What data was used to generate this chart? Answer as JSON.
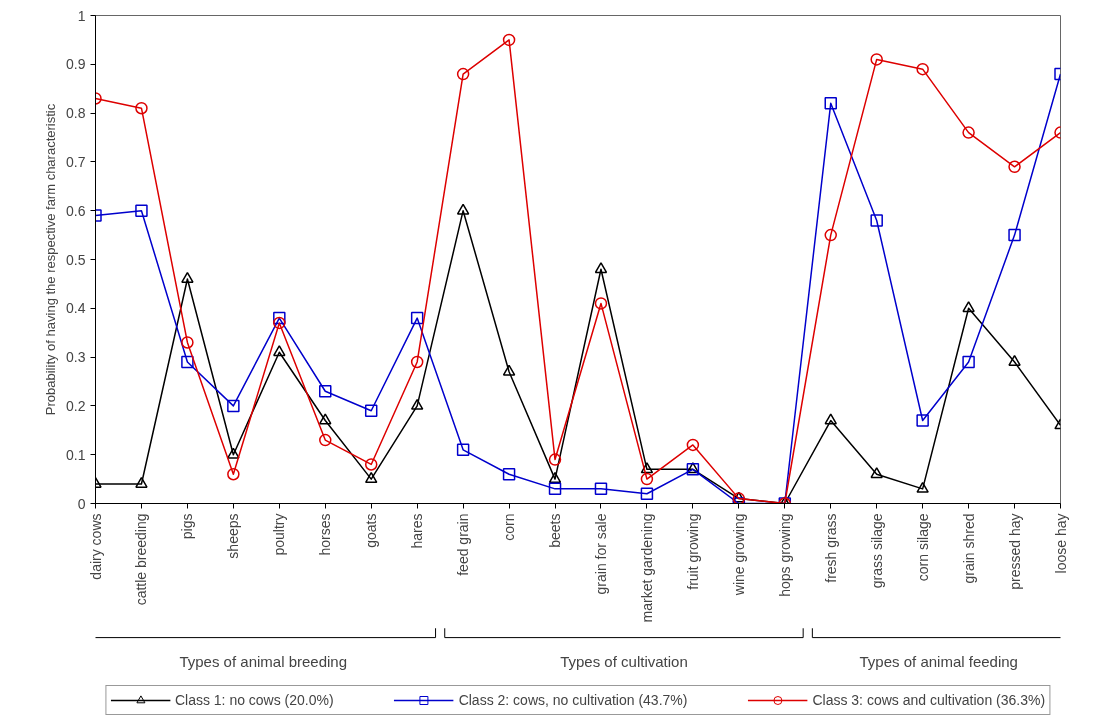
{
  "chart_data": {
    "type": "line",
    "ylabel": "Probability of having the respective farm characteristic",
    "categories": [
      "dairy cows",
      "cattle breeding",
      "pigs",
      "sheeps",
      "poultry",
      "horses",
      "goats",
      "hares",
      "feed grain",
      "corn",
      "beets",
      "grain for sale",
      "market gardening",
      "fruit growing",
      "wine growing",
      "hops growing",
      "fresh grass",
      "grass silage",
      "corn silage",
      "grain shred",
      "pressed hay",
      "loose hay"
    ],
    "series": [
      {
        "name": "Class 1: no cows (20.0%)",
        "color": "#000000",
        "marker": "triangle",
        "values": [
          0.04,
          0.04,
          0.46,
          0.1,
          0.31,
          0.17,
          0.05,
          0.2,
          0.6,
          0.27,
          0.05,
          0.48,
          0.07,
          0.07,
          0.01,
          0.0,
          0.17,
          0.06,
          0.03,
          0.4,
          0.29,
          0.16
        ]
      },
      {
        "name": "Class 2: cows, no cultivation (43.7%)",
        "color": "#0000cc",
        "marker": "square",
        "values": [
          0.59,
          0.6,
          0.29,
          0.2,
          0.38,
          0.23,
          0.19,
          0.38,
          0.11,
          0.06,
          0.03,
          0.03,
          0.02,
          0.07,
          0.0,
          0.0,
          0.82,
          0.58,
          0.17,
          0.29,
          0.55,
          0.88
        ]
      },
      {
        "name": "Class 3: cows and cultivation (36.3%)",
        "color": "#dd0000",
        "marker": "circle",
        "values": [
          0.83,
          0.81,
          0.33,
          0.06,
          0.37,
          0.13,
          0.08,
          0.29,
          0.88,
          0.95,
          0.09,
          0.41,
          0.05,
          0.12,
          0.01,
          0.0,
          0.55,
          0.91,
          0.89,
          0.76,
          0.69,
          0.76
        ]
      }
    ],
    "annotations": [
      "Types of animal breeding",
      "Types of cultivation",
      "Types of animal feeding"
    ],
    "ylim": [
      0,
      1
    ],
    "yticks": [
      0,
      0.1,
      0.2,
      0.3,
      0.4,
      0.5,
      0.6,
      0.7,
      0.8,
      0.9,
      1
    ],
    "grid": false,
    "legend": "bottom",
    "line_style": "solid"
  }
}
